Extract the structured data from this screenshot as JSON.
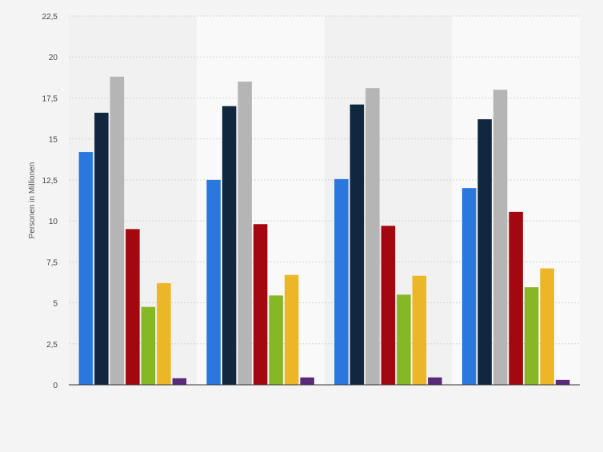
{
  "chart_data": {
    "type": "bar",
    "title": "",
    "xlabel": "",
    "ylabel": "Personen in Millionen",
    "ylim": [
      0,
      22.5
    ],
    "yticks": [
      "0",
      "2,5",
      "5",
      "7,5",
      "10",
      "12,5",
      "15",
      "17,5",
      "20",
      "22,5"
    ],
    "grid": true,
    "legend": "none",
    "categories": [
      "",
      "",
      "",
      ""
    ],
    "series": [
      {
        "color": "#2a77dd",
        "values": [
          14.2,
          12.5,
          12.55,
          12.0
        ]
      },
      {
        "color": "#10273f",
        "values": [
          16.6,
          17.0,
          17.1,
          16.2
        ]
      },
      {
        "color": "#b5b5b5",
        "values": [
          18.8,
          18.5,
          18.1,
          18.0
        ]
      },
      {
        "color": "#a3070f",
        "values": [
          9.5,
          9.8,
          9.7,
          10.55
        ]
      },
      {
        "color": "#86b725",
        "values": [
          4.75,
          5.45,
          5.5,
          5.95
        ]
      },
      {
        "color": "#ecb626",
        "values": [
          6.2,
          6.7,
          6.65,
          7.1
        ]
      },
      {
        "color": "#5a2a7a",
        "values": [
          0.4,
          0.45,
          0.45,
          0.3
        ]
      }
    ]
  }
}
